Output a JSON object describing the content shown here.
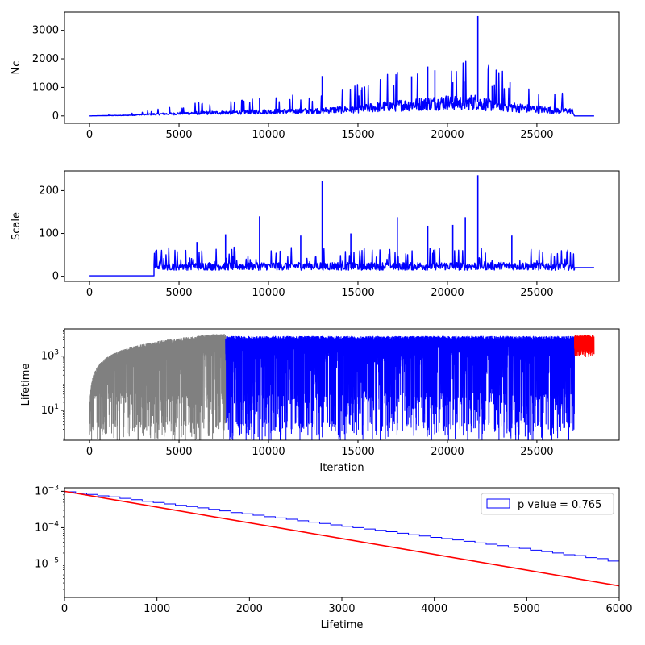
{
  "chart_data": [
    {
      "type": "line",
      "xlabel": "",
      "ylabel": "Nc",
      "xlim": [
        -1400,
        29600
      ],
      "ylim": [
        -260,
        3640
      ],
      "xticks": [
        0,
        5000,
        10000,
        15000,
        20000,
        25000
      ],
      "yticks": [
        0,
        1000,
        2000,
        3000
      ],
      "xticklabels": [
        "0",
        "5000",
        "10000",
        "15000",
        "20000",
        "25000"
      ],
      "yticklabels": [
        "0",
        "1000",
        "2000",
        "3000"
      ],
      "series": [
        {
          "color": "#0000ff",
          "x": [
            0,
            2000,
            3500,
            5000,
            6000,
            7500,
            9000,
            10000,
            12000,
            13000,
            14000,
            15000,
            16000,
            17000,
            18000,
            19000,
            20000,
            21000,
            21500,
            22000,
            23000,
            24000,
            25000,
            26000,
            27000,
            27100,
            28200
          ],
          "y": [
            0,
            20,
            60,
            90,
            110,
            120,
            150,
            160,
            180,
            200,
            230,
            260,
            320,
            380,
            420,
            460,
            500,
            480,
            520,
            440,
            380,
            300,
            250,
            200,
            180,
            0,
            0
          ]
        }
      ],
      "spikes": [
        {
          "x": 9500,
          "y": 640
        },
        {
          "x": 13000,
          "y": 1400
        },
        {
          "x": 15200,
          "y": 900
        },
        {
          "x": 17200,
          "y": 1540
        },
        {
          "x": 18000,
          "y": 1390
        },
        {
          "x": 18900,
          "y": 1730
        },
        {
          "x": 19300,
          "y": 1600
        },
        {
          "x": 20300,
          "y": 1180
        },
        {
          "x": 21000,
          "y": 1200
        },
        {
          "x": 21700,
          "y": 3500
        },
        {
          "x": 22500,
          "y": 1050
        },
        {
          "x": 23500,
          "y": 1180
        }
      ]
    },
    {
      "type": "line",
      "xlabel": "",
      "ylabel": "Scale",
      "xlim": [
        -1400,
        29600
      ],
      "ylim": [
        -12,
        246
      ],
      "xticks": [
        0,
        5000,
        10000,
        15000,
        20000,
        25000
      ],
      "yticks": [
        0,
        100,
        200
      ],
      "xticklabels": [
        "0",
        "5000",
        "10000",
        "15000",
        "20000",
        "25000"
      ],
      "yticklabels": [
        "0",
        "100",
        "200"
      ],
      "series": [
        {
          "color": "#0000ff",
          "x": [
            0,
            3600,
            3600,
            27100,
            27100,
            28200
          ],
          "y": [
            1,
            1,
            22,
            22,
            20,
            20
          ]
        }
      ],
      "spikes": [
        {
          "x": 3700,
          "y": 60
        },
        {
          "x": 6000,
          "y": 80
        },
        {
          "x": 7600,
          "y": 98
        },
        {
          "x": 9500,
          "y": 140
        },
        {
          "x": 11800,
          "y": 95
        },
        {
          "x": 13000,
          "y": 222
        },
        {
          "x": 14600,
          "y": 100
        },
        {
          "x": 17200,
          "y": 138
        },
        {
          "x": 18900,
          "y": 118
        },
        {
          "x": 20300,
          "y": 120
        },
        {
          "x": 21000,
          "y": 138
        },
        {
          "x": 21700,
          "y": 236
        },
        {
          "x": 23600,
          "y": 95
        }
      ]
    },
    {
      "type": "line",
      "xlabel": "Iteration",
      "ylabel": "Lifetime",
      "yscale": "log",
      "xlim": [
        -1400,
        29600
      ],
      "ylim": [
        0.8,
        10000
      ],
      "xticks": [
        0,
        5000,
        10000,
        15000,
        20000,
        25000
      ],
      "yticks": [
        10,
        1000
      ],
      "xticklabels": [
        "0",
        "5000",
        "10000",
        "15000",
        "20000",
        "25000"
      ],
      "yticklabels": [
        "10^1",
        "10^3"
      ],
      "series": [
        {
          "color": "#808080",
          "x": [
            0,
            7600
          ],
          "envelope_top": "x (lifetime grows with iteration)"
        },
        {
          "color": "#0000ff",
          "x": [
            7600,
            27100
          ],
          "y": [
            5000,
            5000
          ]
        },
        {
          "color": "#ff0000",
          "x": [
            27100,
            28200
          ],
          "y": [
            5500,
            5500
          ]
        }
      ]
    },
    {
      "type": "step",
      "xlabel": "Lifetime",
      "ylabel": "",
      "yscale": "log",
      "xlim": [
        0,
        6000
      ],
      "ylim": [
        1.2e-06,
        0.00125
      ],
      "xticks": [
        0,
        1000,
        2000,
        3000,
        4000,
        5000,
        6000
      ],
      "yticks": [
        1e-05,
        0.0001,
        0.001
      ],
      "xticklabels": [
        "0",
        "1000",
        "2000",
        "3000",
        "4000",
        "5000",
        "6000"
      ],
      "yticklabels": [
        "10^-5",
        "10^-4",
        "10^-3"
      ],
      "legend": "top-right",
      "series": [
        {
          "name": "p value = 0.765",
          "color": "#0000ff",
          "bin_width": 120,
          "values": [
            0.00097,
            0.00088,
            0.00082,
            0.00075,
            0.0007,
            0.00064,
            0.00059,
            0.00053,
            0.00049,
            0.00045,
            0.00041,
            0.00038,
            0.00035,
            0.00032,
            0.00029,
            0.00026,
            0.00024,
            0.00022,
            0.0002,
            0.000185,
            0.00017,
            0.000155,
            0.000142,
            0.00013,
            0.000119,
            0.000109,
            0.0001,
            9.2e-05,
            8.4e-05,
            7.7e-05,
            7e-05,
            6.4e-05,
            5.9e-05,
            5.4e-05,
            5e-05,
            4.6e-05,
            4.2e-05,
            3.8e-05,
            3.5e-05,
            3.2e-05,
            2.9e-05,
            2.7e-05,
            2.4e-05,
            2.2e-05,
            2e-05,
            1.8e-05,
            1.7e-05,
            1.5e-05,
            1.4e-05,
            1.2e-05
          ]
        },
        {
          "name": "",
          "color": "#ff0000",
          "type": "line",
          "x": [
            0,
            6000
          ],
          "y": [
            0.001,
            2.5e-06
          ]
        }
      ]
    }
  ]
}
